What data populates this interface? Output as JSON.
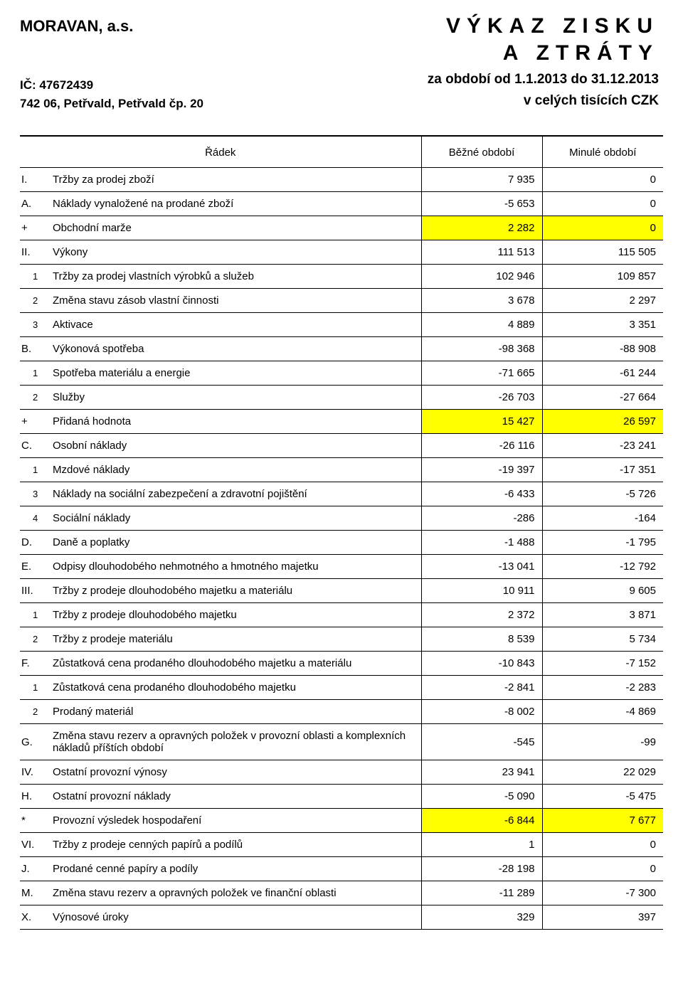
{
  "header": {
    "company_name": "MORAVAN, a.s.",
    "ico_label": "IČ: 47672439",
    "address": "742 06, Petřvald, Petřvald čp. 20",
    "title_line1": "VÝKAZ ZISKU",
    "title_line2": "A ZTRÁTY",
    "period": "za období od 1.1.2013 do 31.12.2013",
    "units": "v celých tisících CZK"
  },
  "columns": {
    "row_label": "Řádek",
    "col_current": "Běžné období",
    "col_prior": "Minulé období"
  },
  "highlight_color": "#ffff00",
  "text_color": "#000000",
  "background_color": "#ffffff",
  "font_family": "Arial",
  "rows": [
    {
      "code": "I.",
      "desc": "Tržby za prodej zboží",
      "v1": "7 935",
      "v2": "0",
      "sub": false,
      "hl": false
    },
    {
      "code": "A.",
      "desc": "Náklady vynaložené na prodané zboží",
      "v1": "-5 653",
      "v2": "0",
      "sub": false,
      "hl": false
    },
    {
      "code": "+",
      "desc": "Obchodní marže",
      "v1": "2 282",
      "v2": "0",
      "sub": false,
      "hl": true
    },
    {
      "code": "II.",
      "desc": "Výkony",
      "v1": "111 513",
      "v2": "115 505",
      "sub": false,
      "hl": false
    },
    {
      "code": "1",
      "desc": "Tržby za prodej vlastních výrobků a služeb",
      "v1": "102 946",
      "v2": "109 857",
      "sub": true,
      "hl": false
    },
    {
      "code": "2",
      "desc": "Změna stavu zásob vlastní činnosti",
      "v1": "3 678",
      "v2": "2 297",
      "sub": true,
      "hl": false
    },
    {
      "code": "3",
      "desc": "Aktivace",
      "v1": "4 889",
      "v2": "3 351",
      "sub": true,
      "hl": false
    },
    {
      "code": "B.",
      "desc": "Výkonová spotřeba",
      "v1": "-98 368",
      "v2": "-88 908",
      "sub": false,
      "hl": false
    },
    {
      "code": "1",
      "desc": "Spotřeba materiálu a energie",
      "v1": "-71 665",
      "v2": "-61 244",
      "sub": true,
      "hl": false
    },
    {
      "code": "2",
      "desc": "Služby",
      "v1": "-26 703",
      "v2": "-27 664",
      "sub": true,
      "hl": false
    },
    {
      "code": "+",
      "desc": "Přidaná hodnota",
      "v1": "15 427",
      "v2": "26 597",
      "sub": false,
      "hl": true
    },
    {
      "code": "C.",
      "desc": "Osobní náklady",
      "v1": "-26 116",
      "v2": "-23 241",
      "sub": false,
      "hl": false
    },
    {
      "code": "1",
      "desc": "Mzdové náklady",
      "v1": "-19 397",
      "v2": "-17 351",
      "sub": true,
      "hl": false
    },
    {
      "code": "3",
      "desc": "Náklady na sociální zabezpečení a zdravotní pojištění",
      "v1": "-6 433",
      "v2": "-5 726",
      "sub": true,
      "hl": false
    },
    {
      "code": "4",
      "desc": "Sociální náklady",
      "v1": "-286",
      "v2": "-164",
      "sub": true,
      "hl": false
    },
    {
      "code": "D.",
      "desc": "Daně a poplatky",
      "v1": "-1 488",
      "v2": "-1 795",
      "sub": false,
      "hl": false
    },
    {
      "code": "E.",
      "desc": "Odpisy dlouhodobého nehmotného a hmotného majetku",
      "v1": "-13 041",
      "v2": "-12 792",
      "sub": false,
      "hl": false
    },
    {
      "code": "III.",
      "desc": "Tržby z prodeje dlouhodobého majetku a materiálu",
      "v1": "10 911",
      "v2": "9 605",
      "sub": false,
      "hl": false
    },
    {
      "code": "1",
      "desc": "Tržby z prodeje dlouhodobého majetku",
      "v1": "2 372",
      "v2": "3 871",
      "sub": true,
      "hl": false
    },
    {
      "code": "2",
      "desc": "Tržby z prodeje materiálu",
      "v1": "8 539",
      "v2": "5 734",
      "sub": true,
      "hl": false
    },
    {
      "code": "F.",
      "desc": "Zůstatková cena prodaného dlouhodobého majetku a materiálu",
      "v1": "-10 843",
      "v2": "-7 152",
      "sub": false,
      "hl": false
    },
    {
      "code": "1",
      "desc": "Zůstatková cena prodaného dlouhodobého majetku",
      "v1": "-2 841",
      "v2": "-2 283",
      "sub": true,
      "hl": false
    },
    {
      "code": "2",
      "desc": "Prodaný materiál",
      "v1": "-8 002",
      "v2": "-4 869",
      "sub": true,
      "hl": false
    },
    {
      "code": "G.",
      "desc": "Změna stavu rezerv a opravných položek v provozní oblasti a komplexních nákladů příštích období",
      "v1": "-545",
      "v2": "-99",
      "sub": false,
      "hl": false
    },
    {
      "code": "IV.",
      "desc": "Ostatní provozní výnosy",
      "v1": "23 941",
      "v2": "22 029",
      "sub": false,
      "hl": false
    },
    {
      "code": "H.",
      "desc": "Ostatní provozní náklady",
      "v1": "-5 090",
      "v2": "-5 475",
      "sub": false,
      "hl": false
    },
    {
      "code": "*",
      "desc": "Provozní výsledek hospodaření",
      "v1": "-6 844",
      "v2": "7 677",
      "sub": false,
      "hl": true
    },
    {
      "code": "VI.",
      "desc": "Tržby z prodeje cenných papírů a podílů",
      "v1": "1",
      "v2": "0",
      "sub": false,
      "hl": false
    },
    {
      "code": "J.",
      "desc": "Prodané cenné papíry a podíly",
      "v1": "-28 198",
      "v2": "0",
      "sub": false,
      "hl": false
    },
    {
      "code": "M.",
      "desc": "Změna stavu rezerv a opravných položek ve finanční oblasti",
      "v1": "-11 289",
      "v2": "-7 300",
      "sub": false,
      "hl": false
    },
    {
      "code": "X.",
      "desc": "Výnosové úroky",
      "v1": "329",
      "v2": "397",
      "sub": false,
      "hl": false
    }
  ]
}
